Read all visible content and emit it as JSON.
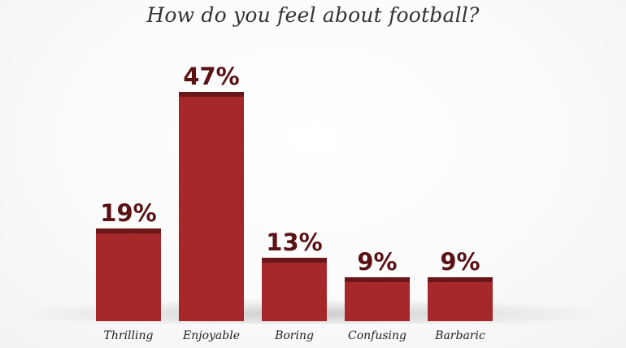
{
  "chart_data": {
    "type": "bar",
    "title": "How do you feel about football?",
    "categories": [
      "Thrilling",
      "Enjoyable",
      "Boring",
      "Confusing",
      "Barbaric"
    ],
    "values": [
      19,
      47,
      13,
      9,
      9
    ],
    "value_suffix": "%",
    "ylim": [
      0,
      47
    ],
    "grid": false,
    "legend": "none",
    "colors": {
      "bar": "#a8282b",
      "bar_cap": "#6b1618",
      "value_label": "#5a1214"
    }
  }
}
